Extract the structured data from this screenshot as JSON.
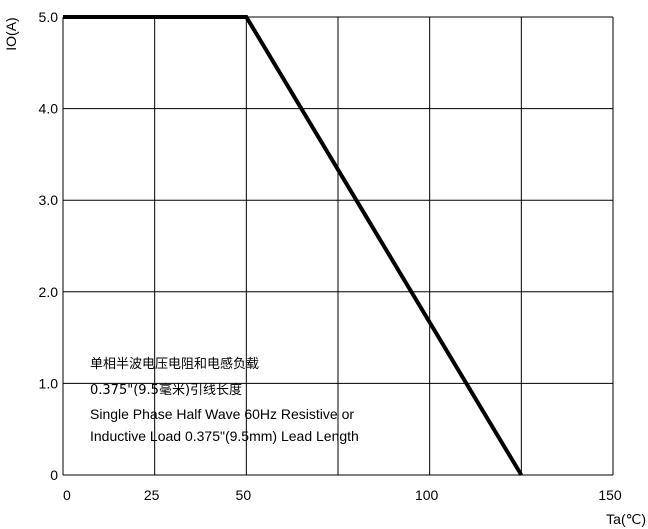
{
  "chart_data": {
    "type": "line",
    "title": "",
    "xlabel": "Ta(℃)",
    "ylabel": "IO(A)",
    "xlim": [
      0,
      150
    ],
    "ylim": [
      0,
      5
    ],
    "x_ticks": [
      0,
      25,
      50,
      100,
      150
    ],
    "x_tick_labels": [
      "0",
      "25",
      "50",
      "100",
      "150"
    ],
    "x_grid": [
      0,
      25,
      50,
      75,
      100,
      125,
      150
    ],
    "y_ticks": [
      0,
      1,
      2,
      3,
      4,
      5
    ],
    "y_tick_labels": [
      "0",
      "1.0",
      "2.0",
      "3.0",
      "4.0",
      "5.0"
    ],
    "grid": true,
    "series": [
      {
        "x": [
          0,
          50,
          125
        ],
        "y": [
          5.0,
          5.0,
          0
        ]
      }
    ],
    "annotation_lines": [
      "单相半波电压电阻和电感负载",
      "0.375\"(9.5毫米)引线长度",
      "Single Phase Half Wave 60Hz Resistive or",
      "Inductive Load 0.375\"(9.5mm) Lead Length"
    ]
  }
}
